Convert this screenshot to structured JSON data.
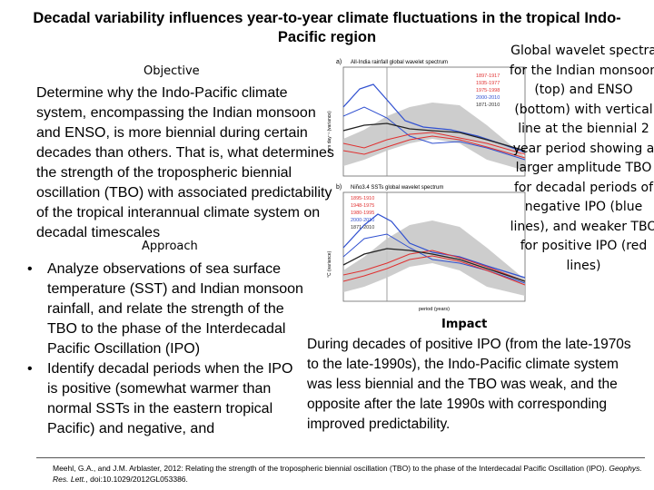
{
  "title": "Decadal variability influences year-to-year climate fluctuations in the tropical Indo-Pacific region",
  "objective": {
    "heading": "Objective",
    "text": "Determine why the Indo-Pacific climate system, encompassing the Indian monsoon and ENSO, is more biennial during certain decades than others. That is, what determines the strength of the tropospheric biennial oscillation (TBO) with associated predictability of the tropical interannual climate system on decadal timescales"
  },
  "approach": {
    "heading": "Approach",
    "items": [
      "Analyze observations of sea surface temperature (SST) and Indian monsoon rainfall, and relate the strength of the TBO to the phase of the Interdecadal Pacific Oscillation (IPO)",
      "Identify decadal periods when the IPO is positive (somewhat warmer than normal SSTs in the eastern tropical Pacific) and negative, and"
    ]
  },
  "caption": "Global wavelet spectra for the Indian monsoon (top) and ENSO (bottom) with vertical line at the biennial 2 year period showing a larger amplitude TBO for decadal periods of negative IPO (blue lines), and weaker TBO for positive IPO (red lines)",
  "impact": {
    "heading": "Impact",
    "text": "During decades of positive IPO (from the late-1970s to the late-1990s), the Indo-Pacific climate system was less biennial and the TBO was weak, and the opposite after the late 1990s with corresponding improved predictability."
  },
  "reference": {
    "text": "Meehl, G.A., and J.M. Arblaster, 2012: Relating the strength of the tropospheric biennial oscillation (TBO) to the phase of the Interdecadal Pacific Oscillation (IPO). ",
    "journal": "Geophys. Res. Lett.",
    "doi": ", doi:10.1029/2012GL053386."
  },
  "figure": {
    "panel_a": {
      "label": "a)",
      "title": "All-India rainfall global wavelet spectrum",
      "ylabel": "mm day⁻¹ (variance)",
      "legend": [
        "1897-1917",
        "1935-1977",
        "1975-1998",
        "2000-2010",
        "1871-2010"
      ]
    },
    "panel_b": {
      "label": "b)",
      "title": "Niño3.4 SSTs global wavelet spectrum",
      "ylabel": "°C (variance)",
      "legend": [
        "1895-1910",
        "1948-1975",
        "1980-1995",
        "2000-2010",
        "1871-2010"
      ],
      "xlabel": "period (years)"
    },
    "legend_colors": [
      "#e03030",
      "#e03030",
      "#e03030",
      "#3050d0",
      "#303030"
    ]
  }
}
